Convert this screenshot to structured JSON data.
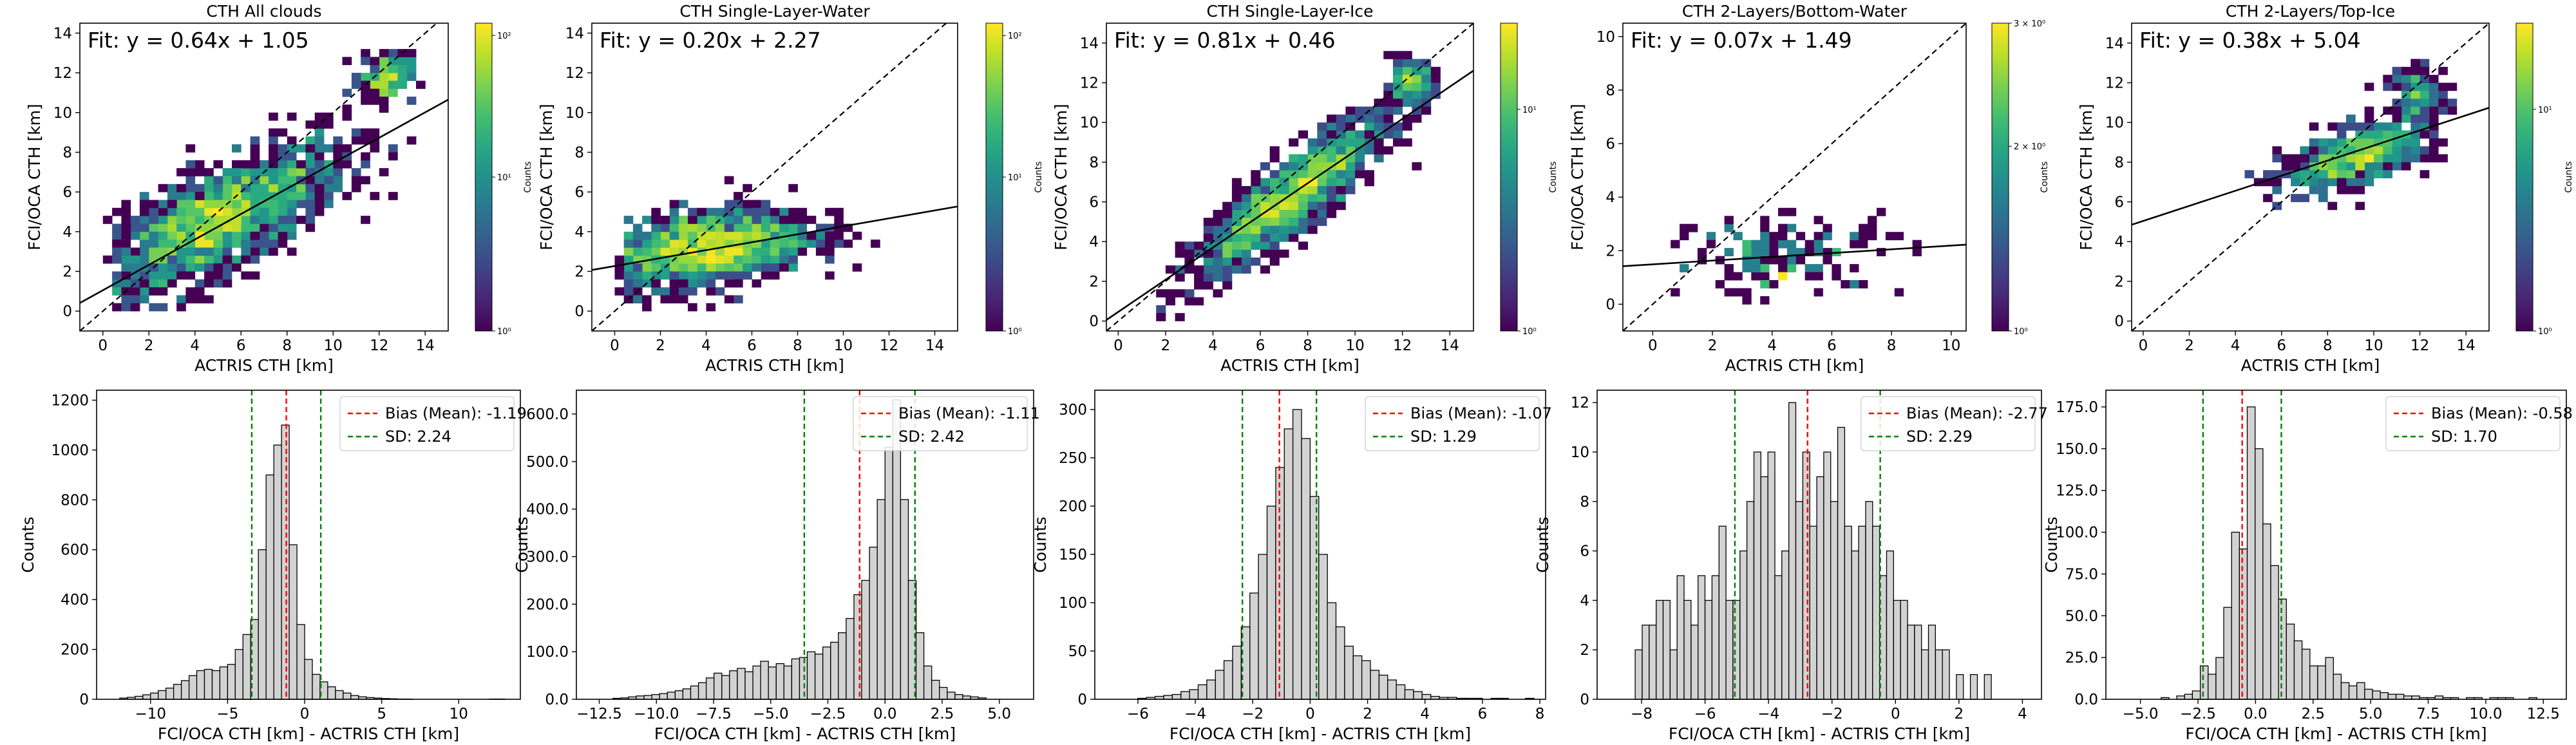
{
  "chart_data": [
    {
      "type": "heatmap",
      "title": "CTH All clouds",
      "xlabel": "ACTRIS CTH [km]",
      "ylabel": "FCI/OCA CTH [km]",
      "xlim": [
        -1,
        15
      ],
      "ylim": [
        -1,
        14.5
      ],
      "xticks": [
        0,
        2,
        4,
        6,
        8,
        10,
        12,
        14
      ],
      "yticks": [
        0,
        2,
        4,
        6,
        8,
        10,
        12,
        14
      ],
      "fit_label": "Fit: y = 0.64x + 1.05",
      "fit": {
        "slope": 0.64,
        "intercept": 1.05
      },
      "identity_line": true,
      "colorbar": {
        "label": "Counts",
        "scale": "log",
        "ticks": [
          "10⁰",
          "10¹",
          "10²"
        ]
      }
    },
    {
      "type": "heatmap",
      "title": "CTH Single-Layer-Water",
      "xlabel": "ACTRIS CTH [km]",
      "ylabel": "FCI/OCA CTH [km]",
      "xlim": [
        -1,
        15
      ],
      "ylim": [
        -1,
        14.5
      ],
      "xticks": [
        0,
        2,
        4,
        6,
        8,
        10,
        12,
        14
      ],
      "yticks": [
        0,
        2,
        4,
        6,
        8,
        10,
        12,
        14
      ],
      "fit_label": "Fit: y = 0.20x + 2.27",
      "fit": {
        "slope": 0.2,
        "intercept": 2.27
      },
      "identity_line": true,
      "colorbar": {
        "label": "Counts",
        "scale": "log",
        "ticks": [
          "10⁰",
          "10¹",
          "10²"
        ]
      }
    },
    {
      "type": "heatmap",
      "title": "CTH Single-Layer-Ice",
      "xlabel": "ACTRIS CTH [km]",
      "ylabel": "FCI/OCA CTH [km]",
      "xlim": [
        -0.5,
        15
      ],
      "ylim": [
        -0.5,
        15
      ],
      "xticks": [
        0,
        2,
        4,
        6,
        8,
        10,
        12,
        14
      ],
      "yticks": [
        0,
        2,
        4,
        6,
        8,
        10,
        12,
        14
      ],
      "fit_label": "Fit: y = 0.81x + 0.46",
      "fit": {
        "slope": 0.81,
        "intercept": 0.46
      },
      "identity_line": true,
      "colorbar": {
        "label": "Counts",
        "scale": "log",
        "ticks": [
          "10⁰",
          "10¹"
        ]
      }
    },
    {
      "type": "heatmap",
      "title": "CTH 2-Layers/Bottom-Water",
      "xlabel": "ACTRIS CTH [km]",
      "ylabel": "FCI/OCA CTH [km]",
      "xlim": [
        -1,
        10.5
      ],
      "ylim": [
        -1,
        10.5
      ],
      "xticks": [
        0,
        2,
        4,
        6,
        8,
        10
      ],
      "yticks": [
        0,
        2,
        4,
        6,
        8,
        10
      ],
      "fit_label": "Fit: y = 0.07x + 1.49",
      "fit": {
        "slope": 0.07,
        "intercept": 1.49
      },
      "identity_line": true,
      "colorbar": {
        "label": "Counts",
        "scale": "log",
        "ticks": [
          "10⁰",
          "2 × 10⁰",
          "3 × 10⁰"
        ]
      }
    },
    {
      "type": "heatmap",
      "title": "CTH 2-Layers/Top-Ice",
      "xlabel": "ACTRIS CTH [km]",
      "ylabel": "FCI/OCA CTH [km]",
      "xlim": [
        -0.5,
        15
      ],
      "ylim": [
        -0.5,
        15
      ],
      "xticks": [
        0,
        2,
        4,
        6,
        8,
        10,
        12,
        14
      ],
      "yticks": [
        0,
        2,
        4,
        6,
        8,
        10,
        12,
        14
      ],
      "fit_label": "Fit: y = 0.38x + 5.04",
      "fit": {
        "slope": 0.38,
        "intercept": 5.04
      },
      "identity_line": true,
      "colorbar": {
        "label": "Counts",
        "scale": "log",
        "ticks": [
          "10⁰",
          "10¹"
        ]
      }
    },
    {
      "type": "bar",
      "xlabel": "FCI/OCA CTH [km] - ACTRIS CTH [km]",
      "ylabel": "Counts",
      "xlim": [
        -13.5,
        14
      ],
      "ylim": [
        0,
        1240
      ],
      "xticks": [
        -10,
        -5,
        0,
        5,
        10
      ],
      "yticks": [
        0,
        200,
        400,
        600,
        800,
        1000,
        1200
      ],
      "bin_start": -12,
      "bin_width": 0.5,
      "values": [
        5,
        8,
        12,
        18,
        25,
        35,
        45,
        60,
        75,
        95,
        115,
        120,
        115,
        130,
        140,
        200,
        260,
        320,
        600,
        900,
        1020,
        1100,
        620,
        300,
        160,
        100,
        70,
        50,
        35,
        25,
        15,
        10,
        7,
        5,
        3,
        2,
        1,
        1,
        0,
        0,
        0,
        0,
        0,
        0,
        0,
        0,
        0,
        0,
        1,
        1
      ],
      "bias_label": "Bias (Mean): -1.19",
      "bias": -1.19,
      "sd_label": "SD: 2.24",
      "sd": 2.24
    },
    {
      "type": "bar",
      "xlabel": "FCI/OCA CTH [km] - ACTRIS CTH [km]",
      "ylabel": "Counts",
      "xlim": [
        -13.5,
        6.5
      ],
      "ylim": [
        0,
        650
      ],
      "xticks": [
        -12.5,
        -10.0,
        -7.5,
        -5.0,
        -2.5,
        0.0,
        2.5,
        5.0
      ],
      "yticks": [
        0,
        100,
        200,
        300,
        400,
        500,
        600
      ],
      "bin_start": -11.9,
      "bin_width": 0.34,
      "values": [
        2,
        3,
        5,
        7,
        8,
        10,
        12,
        15,
        18,
        22,
        28,
        35,
        45,
        55,
        50,
        60,
        65,
        58,
        70,
        80,
        68,
        75,
        70,
        85,
        88,
        100,
        95,
        110,
        120,
        140,
        170,
        220,
        250,
        320,
        420,
        530,
        630,
        420,
        250,
        140,
        70,
        40,
        25,
        15,
        10,
        7,
        5,
        3
      ],
      "bias_label": "Bias (Mean): -1.11",
      "bias": -1.11,
      "sd_label": "SD: 2.42",
      "sd": 2.42
    },
    {
      "type": "bar",
      "xlabel": "FCI/OCA CTH [km] - ACTRIS CTH [km]",
      "ylabel": "Counts",
      "xlim": [
        -7.5,
        8.2
      ],
      "ylim": [
        0,
        320
      ],
      "xticks": [
        -6,
        -4,
        -2,
        0,
        2,
        4,
        6,
        8
      ],
      "yticks": [
        0,
        50,
        100,
        150,
        200,
        250,
        300
      ],
      "bin_start": -6.0,
      "bin_width": 0.3,
      "values": [
        1,
        2,
        3,
        4,
        5,
        8,
        10,
        15,
        20,
        30,
        40,
        55,
        75,
        110,
        150,
        200,
        240,
        280,
        300,
        270,
        210,
        150,
        100,
        75,
        55,
        45,
        40,
        30,
        25,
        20,
        15,
        10,
        8,
        5,
        3,
        2,
        2,
        1,
        1,
        1,
        0,
        1,
        1,
        0,
        0,
        1
      ],
      "bias_label": "Bias (Mean): -1.07",
      "bias": -1.07,
      "sd_label": "SD: 1.29",
      "sd": 1.29
    },
    {
      "type": "bar",
      "xlabel": "FCI/OCA CTH [km] - ACTRIS CTH [km]",
      "ylabel": "Counts",
      "xlim": [
        -9.4,
        4.6
      ],
      "ylim": [
        0,
        12.5
      ],
      "xticks": [
        -8,
        -6,
        -4,
        -2,
        0,
        2,
        4
      ],
      "yticks": [
        0,
        2,
        4,
        6,
        8,
        10,
        12
      ],
      "bin_start": -8.2,
      "bin_width": 0.22,
      "values": [
        2,
        3,
        3,
        4,
        4,
        2,
        5,
        4,
        3,
        5,
        4,
        5,
        7,
        4,
        4,
        6,
        8,
        10,
        9,
        10,
        5,
        6,
        12,
        8,
        10,
        7,
        9,
        10,
        8,
        11,
        7,
        6,
        7,
        8,
        7,
        5,
        6,
        4,
        4,
        3,
        3,
        2,
        3,
        2,
        2,
        0,
        1,
        0,
        1,
        0,
        1
      ],
      "bias_label": "Bias (Mean): -2.77",
      "bias": -2.77,
      "sd_label": "SD: 2.29",
      "sd": 2.29
    },
    {
      "type": "bar",
      "xlabel": "FCI/OCA CTH [km] - ACTRIS CTH [km]",
      "ylabel": "Counts",
      "xlim": [
        -6.5,
        13.5
      ],
      "ylim": [
        0,
        185
      ],
      "xticks": [
        -5.0,
        -2.5,
        0.0,
        2.5,
        5.0,
        7.5,
        10.0,
        12.5
      ],
      "yticks": [
        0,
        25,
        50,
        75,
        100,
        125,
        150,
        175
      ],
      "bin_start": -4.1,
      "bin_width": 0.34,
      "values": [
        1,
        0,
        2,
        3,
        5,
        20,
        15,
        25,
        55,
        100,
        90,
        175,
        150,
        105,
        80,
        60,
        45,
        35,
        30,
        20,
        20,
        25,
        15,
        10,
        8,
        10,
        6,
        5,
        4,
        3,
        3,
        2,
        2,
        1,
        1,
        2,
        1,
        1,
        0,
        1,
        1,
        0,
        1,
        1,
        1,
        0,
        0,
        1
      ],
      "bias_label": "Bias (Mean): -0.58",
      "bias": -0.58,
      "sd_label": "SD: 1.70",
      "sd": 1.7
    }
  ],
  "colors": {
    "bar_fill": "#d3d3d3",
    "bar_edge": "#000000",
    "bias_line": "#ff0000",
    "sd_line": "#008000",
    "fit_line": "#000000"
  }
}
